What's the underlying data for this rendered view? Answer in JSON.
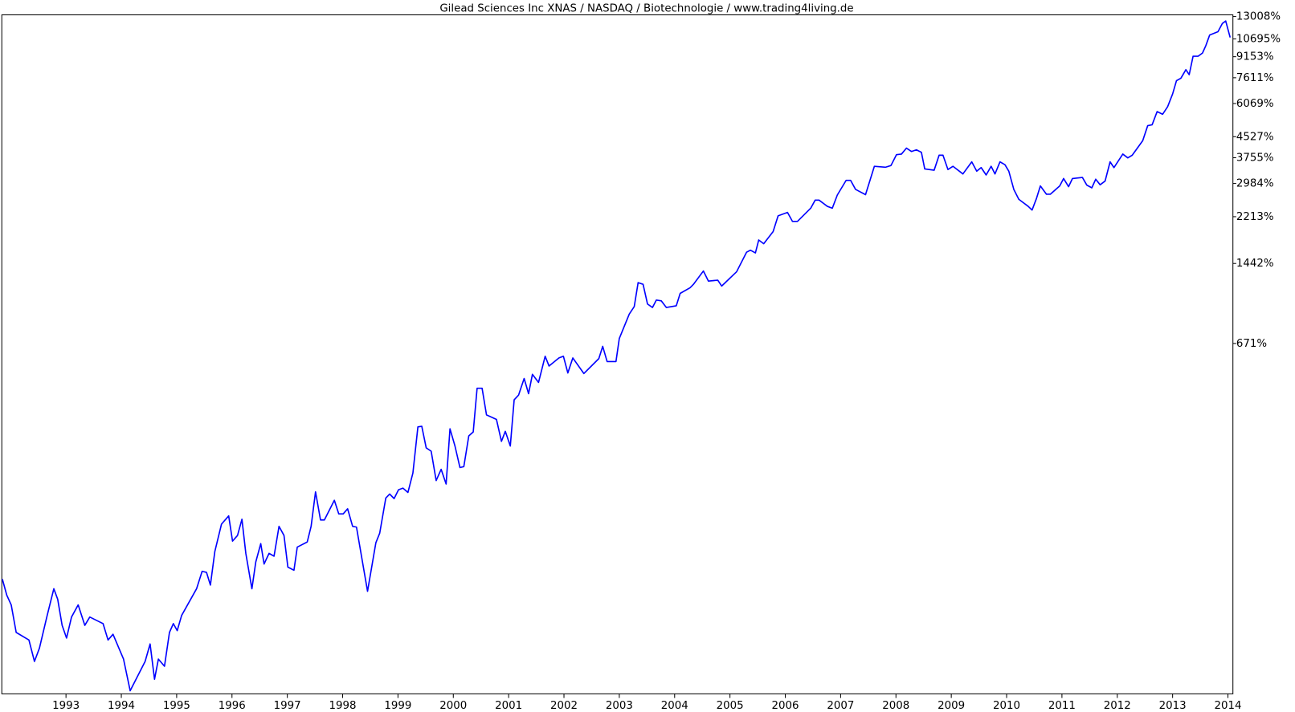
{
  "chart_data": {
    "type": "line",
    "title": "Gilead Sciences Inc XNAS / NASDAQ / Biotechnologie / www.trading4living.de",
    "yscale": "log",
    "xlim": [
      1991.84,
      2014.09
    ],
    "ylim": [
      -63,
      13200
    ],
    "xticks": [
      1993,
      1994,
      1995,
      1996,
      1997,
      1998,
      1999,
      2000,
      2001,
      2002,
      2003,
      2004,
      2005,
      2006,
      2007,
      2008,
      2009,
      2010,
      2011,
      2012,
      2013,
      2014
    ],
    "yticks": [
      {
        "value": 671,
        "label": "671%"
      },
      {
        "value": 1442,
        "label": "1442%"
      },
      {
        "value": 2213,
        "label": "2213%"
      },
      {
        "value": 2984,
        "label": "2984%"
      },
      {
        "value": 3755,
        "label": "3755%"
      },
      {
        "value": 4527,
        "label": "4527%"
      },
      {
        "value": 6069,
        "label": "6069%"
      },
      {
        "value": 7611,
        "label": "7611%"
      },
      {
        "value": 9153,
        "label": "9153%"
      },
      {
        "value": 10695,
        "label": "10695%"
      },
      {
        "value": 13008,
        "label": "13008%"
      }
    ],
    "x": [
      1991.85,
      1991.93,
      1992.01,
      1992.1,
      1992.33,
      1992.43,
      1992.52,
      1992.66,
      1992.78,
      1992.85,
      1992.93,
      1993.01,
      1993.1,
      1993.22,
      1993.34,
      1993.43,
      1993.67,
      1993.76,
      1993.85,
      1994.04,
      1994.16,
      1994.43,
      1994.52,
      1994.6,
      1994.67,
      1994.78,
      1994.87,
      1994.94,
      1995.01,
      1995.09,
      1995.36,
      1995.46,
      1995.54,
      1995.61,
      1995.69,
      1995.81,
      1995.94,
      1996.01,
      1996.1,
      1996.18,
      1996.25,
      1996.36,
      1996.43,
      1996.52,
      1996.58,
      1996.67,
      1996.76,
      1996.85,
      1996.94,
      1997.01,
      1997.12,
      1997.18,
      1997.36,
      1997.43,
      1997.51,
      1997.6,
      1997.67,
      1997.85,
      1997.93,
      1998.01,
      1998.09,
      1998.18,
      1998.25,
      1998.45,
      1998.6,
      1998.67,
      1998.78,
      1998.85,
      1998.93,
      1999.01,
      1999.09,
      1999.18,
      1999.27,
      1999.36,
      1999.43,
      1999.51,
      1999.6,
      1999.69,
      1999.78,
      1999.87,
      1999.94,
      2000.03,
      2000.12,
      2000.19,
      2000.28,
      2000.36,
      2000.43,
      2000.52,
      2000.6,
      2000.78,
      2000.87,
      2000.94,
      2001.03,
      2001.1,
      2001.18,
      2001.28,
      2001.36,
      2001.43,
      2001.54,
      2001.66,
      2001.73,
      2001.91,
      2001.99,
      2002.07,
      2002.16,
      2002.36,
      2002.63,
      2002.7,
      2002.78,
      2002.94,
      2003.0,
      2003.18,
      2003.27,
      2003.34,
      2003.43,
      2003.51,
      2003.6,
      2003.67,
      2003.76,
      2003.85,
      2004.03,
      2004.1,
      2004.28,
      2004.34,
      2004.52,
      2004.61,
      2004.78,
      2004.85,
      2005.12,
      2005.3,
      2005.37,
      2005.46,
      2005.52,
      2005.61,
      2005.78,
      2005.87,
      2006.04,
      2006.13,
      2006.22,
      2006.46,
      2006.54,
      2006.61,
      2006.76,
      2006.85,
      2006.94,
      2007.1,
      2007.18,
      2007.27,
      2007.45,
      2007.61,
      2007.81,
      2007.91,
      2008.01,
      2008.1,
      2008.19,
      2008.28,
      2008.37,
      2008.46,
      2008.52,
      2008.69,
      2008.78,
      2008.85,
      2008.94,
      2009.03,
      2009.21,
      2009.37,
      2009.46,
      2009.54,
      2009.63,
      2009.72,
      2009.79,
      2009.88,
      2009.97,
      2010.04,
      2010.13,
      2010.22,
      2010.39,
      2010.46,
      2010.54,
      2010.61,
      2010.72,
      2010.79,
      2010.96,
      2011.03,
      2011.12,
      2011.19,
      2011.37,
      2011.45,
      2011.54,
      2011.61,
      2011.69,
      2011.78,
      2011.87,
      2011.94,
      2012.1,
      2012.19,
      2012.27,
      2012.46,
      2012.55,
      2012.63,
      2012.72,
      2012.82,
      2012.91,
      2013.0,
      2013.07,
      2013.15,
      2013.24,
      2013.3,
      2013.37,
      2013.46,
      2013.54,
      2013.6,
      2013.67,
      2013.82,
      2013.9,
      2013.96,
      2014.04
    ],
    "series": [
      {
        "color": "#0000ff",
        "values": [
          0,
          -13,
          -20,
          -37,
          -41,
          -51,
          -45,
          -27,
          -8,
          -16,
          -33,
          -40,
          -28,
          -20,
          -33,
          -28,
          -32,
          -41,
          -38,
          -50,
          -62,
          -51,
          -43,
          -58,
          -50,
          -53,
          -37,
          -32,
          -36,
          -27,
          -8,
          7,
          6,
          -5,
          27,
          61,
          73,
          39,
          46,
          68,
          25,
          -8,
          16,
          36,
          14,
          25,
          22,
          58,
          46,
          11,
          8,
          32,
          38,
          58,
          113,
          67,
          67,
          98,
          76,
          76,
          84,
          58,
          57,
          -10,
          37,
          49,
          102,
          109,
          101,
          117,
          120,
          112,
          151,
          274,
          276,
          212,
          203,
          135,
          159,
          128,
          268,
          217,
          163,
          165,
          246,
          258,
          423,
          423,
          315,
          299,
          230,
          260,
          217,
          373,
          393,
          469,
          399,
          490,
          450,
          590,
          534,
          580,
          590,
          497,
          580,
          494,
          576,
          652,
          559,
          559,
          705,
          894,
          961,
          1206,
          1187,
          985,
          953,
          1023,
          1015,
          953,
          969,
          1090,
          1150,
          1187,
          1345,
          1224,
          1234,
          1168,
          1335,
          1600,
          1630,
          1590,
          1790,
          1730,
          1933,
          2230,
          2300,
          2120,
          2120,
          2390,
          2570,
          2570,
          2430,
          2390,
          2690,
          3070,
          3070,
          2830,
          2700,
          3480,
          3450,
          3504,
          3860,
          3880,
          4090,
          3970,
          4030,
          3940,
          3400,
          3360,
          3840,
          3840,
          3380,
          3480,
          3250,
          3620,
          3330,
          3440,
          3220,
          3480,
          3250,
          3620,
          3530,
          3330,
          2830,
          2590,
          2430,
          2350,
          2610,
          2920,
          2710,
          2710,
          2920,
          3120,
          2900,
          3120,
          3150,
          2940,
          2870,
          3100,
          2950,
          3050,
          3620,
          3440,
          3880,
          3750,
          3840,
          4370,
          4990,
          5030,
          5650,
          5520,
          5900,
          6600,
          7420,
          7580,
          8170,
          7820,
          9190,
          9190,
          9450,
          10080,
          11070,
          11390,
          12250,
          12510,
          10830
        ]
      }
    ]
  }
}
